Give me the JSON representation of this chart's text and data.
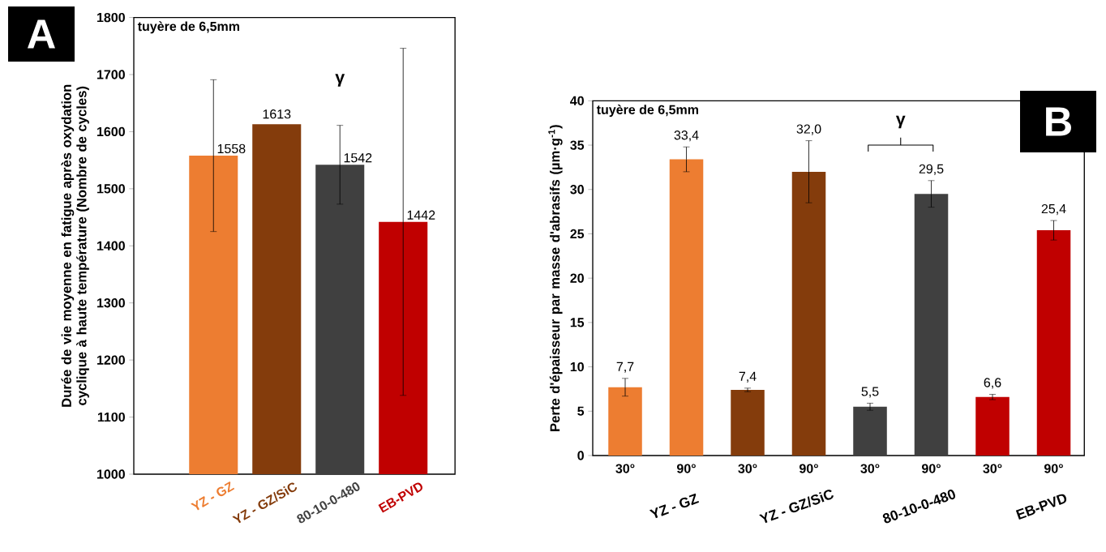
{
  "chart_data": [
    {
      "type": "bar",
      "title": "A",
      "ylabel": "Durée de vie moyenne en fatigue après oxydation cyclique à haute température (Nombre de cycles)",
      "categories": [
        "YZ - GZ",
        "YZ - GZ/SiC",
        "80-10-0-480",
        "EB-PVD"
      ],
      "values": [
        1558,
        1613,
        1542,
        1442
      ],
      "errors": [
        133,
        null,
        69,
        304
      ],
      "value_labels": [
        "1558",
        "1613",
        "1542",
        "1442"
      ],
      "colors": [
        "#ed7d31",
        "#843c0c",
        "#404040",
        "#c00000"
      ],
      "ylim": [
        1000,
        1800
      ],
      "yticks": [
        1000,
        1100,
        1200,
        1300,
        1400,
        1500,
        1600,
        1700,
        1800
      ],
      "annotations": [
        "tuyère de 6,5mm",
        "γ"
      ]
    },
    {
      "type": "bar",
      "title": "B",
      "ylabel": "Perte d'épaisseur par masse d'abrasifs (µm·g$^{-1}$)",
      "categories": [
        "30°",
        "90°",
        "30°",
        "90°",
        "30°",
        "90°",
        "30°",
        "90°"
      ],
      "values": [
        7.7,
        33.4,
        7.4,
        32.0,
        5.5,
        29.5,
        6.6,
        25.4
      ],
      "errors": [
        1.0,
        1.4,
        0.2,
        3.5,
        0.4,
        1.5,
        0.3,
        1.1
      ],
      "value_labels": [
        "7,7",
        "33,4",
        "7,4",
        "32,0",
        "5,5",
        "29,5",
        "6,6",
        "25,4"
      ],
      "colors": [
        "#ed7d31",
        "#ed7d31",
        "#843c0c",
        "#843c0c",
        "#404040",
        "#404040",
        "#c00000",
        "#c00000"
      ],
      "ylim": [
        0,
        40
      ],
      "yticks": [
        0,
        5,
        10,
        15,
        20,
        25,
        30,
        35,
        40
      ],
      "annotations": [
        "tuyère de 6,5mm",
        "γ",
        "YZ - GZ",
        "YZ - GZ/SiC",
        "80-10-0-480",
        "EB-PVD"
      ]
    }
  ]
}
